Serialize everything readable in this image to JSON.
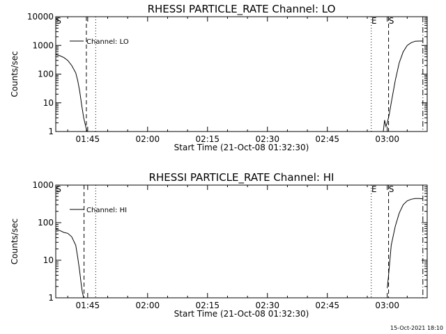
{
  "footer": {
    "timestamp": "15-Oct-2021 18:10"
  },
  "chart_data": [
    {
      "type": "line",
      "title": "RHESSI PARTICLE_RATE Channel: LO",
      "xlabel": "Start Time (21-Oct-08 01:32:30)",
      "ylabel": "Counts/sec",
      "yscale": "log",
      "ylim": [
        1,
        10000
      ],
      "xlim": [
        "01:37:00",
        "03:10:00"
      ],
      "xticks": [
        "01:45",
        "02:00",
        "02:15",
        "02:30",
        "02:45",
        "03:00"
      ],
      "yticks": [
        "1",
        "10",
        "100",
        "1000",
        "10000"
      ],
      "legend_position": "top-left",
      "series": [
        {
          "name": "Channel: LO",
          "segments": [
            {
              "x": [
                "01:37:00",
                "01:38:00",
                "01:39:00",
                "01:40:00",
                "01:41:00",
                "01:42:00",
                "01:42:30",
                "01:43:00",
                "01:43:30",
                "01:44:00",
                "01:44:30",
                "01:44:50"
              ],
              "y": [
                480,
                440,
                380,
                300,
                200,
                110,
                60,
                25,
                8,
                3,
                1.5,
                1
              ]
            },
            {
              "x": [
                "02:59:00",
                "02:59:20",
                "02:59:40",
                "03:00:00",
                "03:00:30",
                "03:01:00",
                "03:02:00",
                "03:03:00",
                "03:04:00",
                "03:05:00",
                "03:06:00",
                "03:07:00",
                "03:08:00",
                "03:08:50"
              ],
              "y": [
                1,
                2.5,
                1.5,
                2,
                4,
                10,
                60,
                250,
                600,
                1000,
                1250,
                1400,
                1420,
                1420
              ]
            }
          ]
        }
      ],
      "markers": [
        {
          "label": "S",
          "x": "01:37:00",
          "style": "dash"
        },
        {
          "label": "",
          "x": "01:44:40",
          "style": "dash"
        },
        {
          "label": "",
          "x": "01:47:00",
          "style": "dot"
        },
        {
          "label": "E",
          "x": "02:56:00",
          "style": "dot"
        },
        {
          "label": "S",
          "x": "03:00:20",
          "style": "dash"
        },
        {
          "label": "",
          "x": "03:08:55",
          "style": "dashdot"
        }
      ]
    },
    {
      "type": "line",
      "title": "RHESSI PARTICLE_RATE Channel: HI",
      "xlabel": "Start Time (21-Oct-08 01:32:30)",
      "ylabel": "Counts/sec",
      "yscale": "log",
      "ylim": [
        1,
        1000
      ],
      "xlim": [
        "01:37:00",
        "03:10:00"
      ],
      "xticks": [
        "01:45",
        "02:00",
        "02:15",
        "02:30",
        "02:45",
        "03:00"
      ],
      "yticks": [
        "1",
        "10",
        "100",
        "1000"
      ],
      "legend_position": "top-left",
      "series": [
        {
          "name": "Channel: HI",
          "segments": [
            {
              "x": [
                "01:37:00",
                "01:38:00",
                "01:39:00",
                "01:40:00",
                "01:41:00",
                "01:42:00",
                "01:42:30",
                "01:43:00",
                "01:43:20",
                "01:43:40",
                "01:44:00"
              ],
              "y": [
                68,
                62,
                55,
                52,
                42,
                25,
                12,
                5,
                2.5,
                1.4,
                1
              ]
            },
            {
              "x": [
                "03:00:00",
                "03:00:20",
                "03:00:40",
                "03:01:00",
                "03:02:00",
                "03:03:00",
                "03:04:00",
                "03:05:00",
                "03:06:00",
                "03:07:00",
                "03:08:00",
                "03:08:50"
              ],
              "y": [
                1.8,
                4,
                10,
                25,
                80,
                180,
                300,
                380,
                420,
                440,
                440,
                430
              ]
            }
          ]
        }
      ],
      "markers": [
        {
          "label": "S",
          "x": "01:37:00",
          "style": "dash"
        },
        {
          "label": "",
          "x": "01:44:05",
          "style": "dash"
        },
        {
          "label": "",
          "x": "01:47:00",
          "style": "dot"
        },
        {
          "label": "E",
          "x": "02:56:00",
          "style": "dot"
        },
        {
          "label": "S",
          "x": "03:00:20",
          "style": "dash"
        },
        {
          "label": "",
          "x": "03:08:55",
          "style": "dashdot"
        }
      ]
    }
  ]
}
